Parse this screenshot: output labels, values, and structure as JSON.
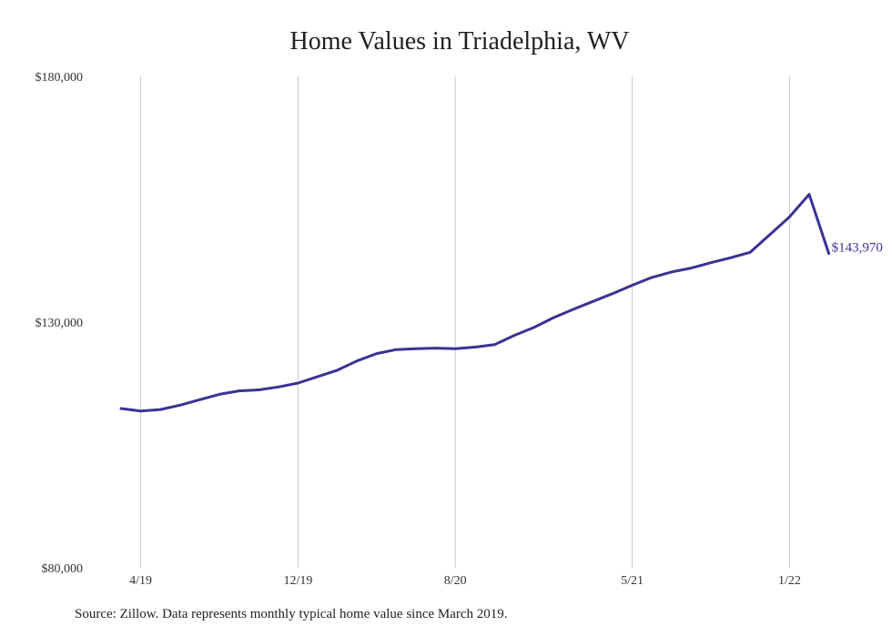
{
  "chart_data": {
    "type": "line",
    "title": "Home Values in Triadelphia, WV",
    "xlabel": "",
    "ylabel": "",
    "ylim": [
      80000,
      180000
    ],
    "yticks": [
      {
        "value": 80000,
        "label": "$80,000"
      },
      {
        "value": 130000,
        "label": "$130,000"
      },
      {
        "value": 180000,
        "label": "$180,000"
      }
    ],
    "xticks": [
      {
        "month": 1,
        "label": "4/19"
      },
      {
        "month": 9,
        "label": "12/19"
      },
      {
        "month": 17,
        "label": "8/20"
      },
      {
        "month": 26,
        "label": "5/21"
      },
      {
        "month": 34,
        "label": "1/22"
      }
    ],
    "grid": "vertical",
    "line_color": "#3a3393",
    "series": [
      {
        "months": [
          0,
          1,
          2,
          3,
          4,
          5,
          6,
          7,
          8,
          9,
          10,
          11,
          12,
          13,
          14,
          15,
          16,
          17,
          18,
          19,
          20,
          21,
          22,
          23,
          24,
          25,
          26,
          27,
          28,
          29,
          30,
          31,
          32,
          33,
          34,
          35,
          36
        ],
        "values": [
          112400,
          111900,
          112200,
          113100,
          114200,
          115300,
          116000,
          116200,
          116800,
          117600,
          118900,
          120200,
          122100,
          123600,
          124400,
          124600,
          124700,
          124600,
          124900,
          125400,
          127300,
          128900,
          130900,
          132600,
          134200,
          135800,
          137500,
          139100,
          140200,
          141000,
          142100,
          143100,
          144200,
          147800,
          151400,
          156000,
          143970
        ]
      }
    ],
    "end_label": "$143,970",
    "source": "Source: Zillow. Data represents monthly typical home value since March 2019."
  }
}
